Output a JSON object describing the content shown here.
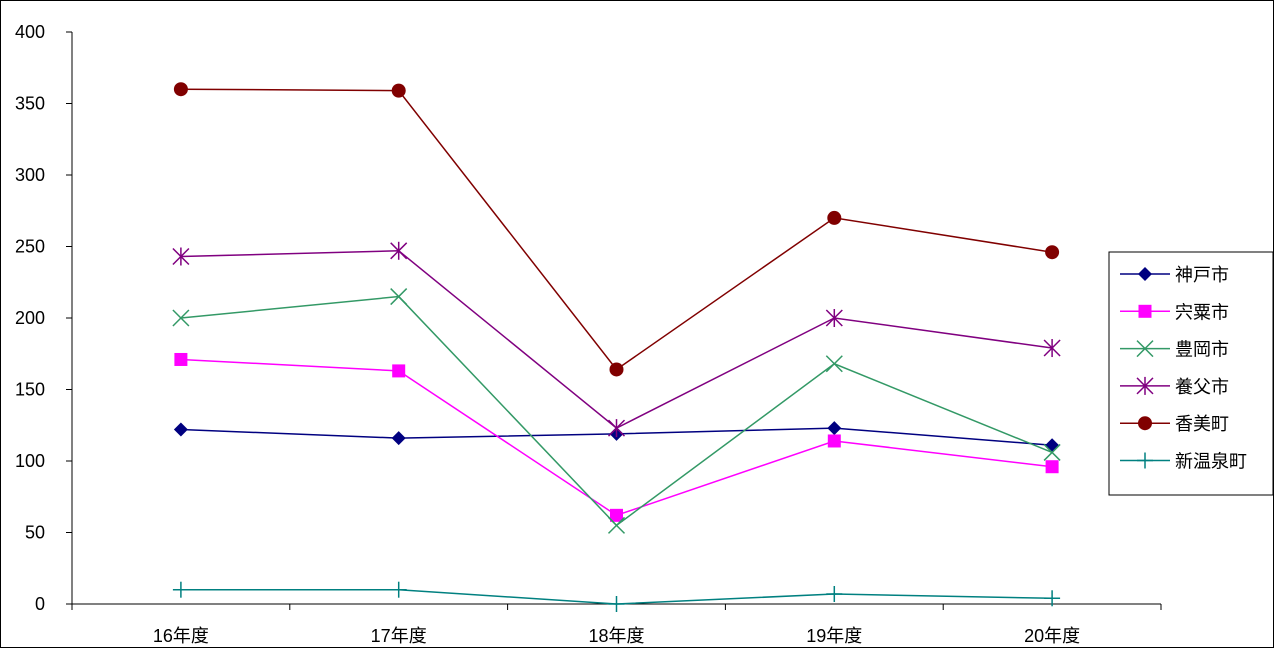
{
  "chart_data": {
    "type": "line",
    "title": "",
    "xlabel": "",
    "ylabel": "",
    "categories": [
      "16年度",
      "17年度",
      "18年度",
      "19年度",
      "20年度"
    ],
    "ylim": [
      0,
      400
    ],
    "yticks": [
      0,
      50,
      100,
      150,
      200,
      250,
      300,
      350,
      400
    ],
    "ytick_labels": [
      "0",
      "50",
      "100",
      "150",
      "200",
      "250",
      "300",
      "350",
      "400"
    ],
    "grid": false,
    "legend_position": "right",
    "series": [
      {
        "name": "神戸市",
        "color": "#000080",
        "marker": "diamond",
        "values": [
          122,
          116,
          119,
          123,
          111
        ]
      },
      {
        "name": "宍粟市",
        "color": "#ff00ff",
        "marker": "square",
        "values": [
          171,
          163,
          62,
          114,
          96
        ]
      },
      {
        "name": "豊岡市",
        "color": "#339966",
        "marker": "x",
        "values": [
          200,
          215,
          55,
          168,
          106
        ]
      },
      {
        "name": "養父市",
        "color": "#800080",
        "marker": "asterisk",
        "values": [
          243,
          247,
          123,
          200,
          179
        ]
      },
      {
        "name": "香美町",
        "color": "#800000",
        "marker": "circle",
        "values": [
          360,
          359,
          164,
          270,
          246
        ]
      },
      {
        "name": "新温泉町",
        "color": "#008080",
        "marker": "plus",
        "values": [
          10,
          10,
          0,
          7,
          4
        ]
      }
    ]
  }
}
